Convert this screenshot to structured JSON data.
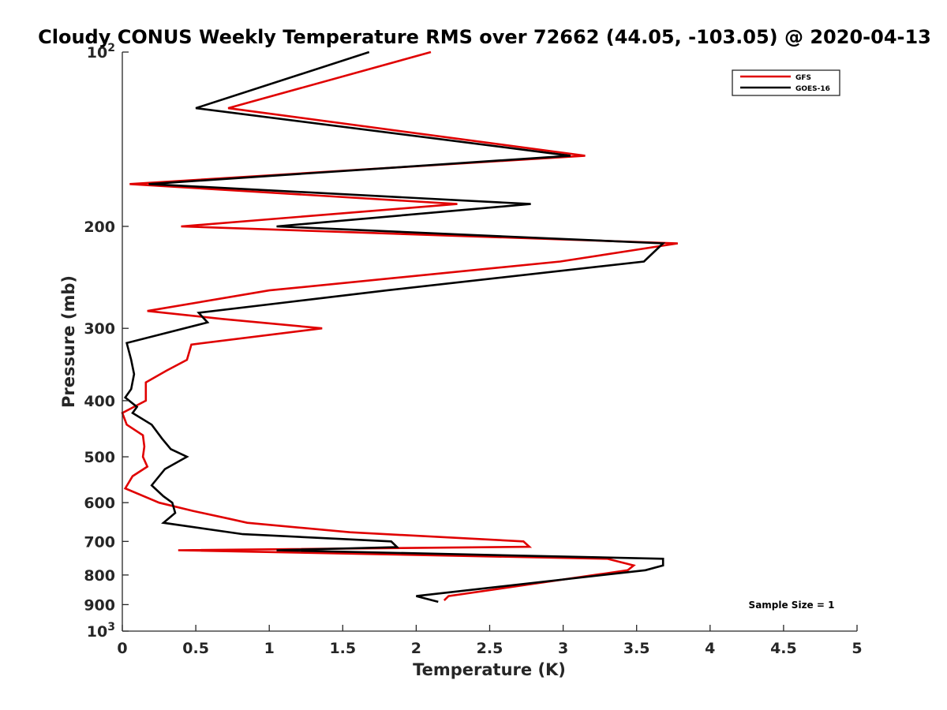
{
  "chart_data": {
    "type": "line",
    "title": "Cloudy CONUS Weekly Temperature RMS over 72662 (44.05, -103.05) @ 2020-04-13",
    "xlabel": "Temperature (K)",
    "ylabel": "Pressure (mb)",
    "xlim": [
      0,
      5
    ],
    "ylim": [
      100,
      1000
    ],
    "y_scale": "log",
    "y_reversed": true,
    "grid": false,
    "legend_position": "top-right",
    "x_ticks": [
      "0",
      "0.5",
      "1",
      "1.5",
      "2",
      "2.5",
      "3",
      "3.5",
      "4",
      "4.5",
      "5"
    ],
    "x_tick_values": [
      0,
      0.5,
      1,
      1.5,
      2,
      2.5,
      3,
      3.5,
      4,
      4.5,
      5
    ],
    "y_ticks": [
      {
        "value": 100,
        "base": "10",
        "exp": "2"
      },
      {
        "value": 200,
        "label": "200"
      },
      {
        "value": 300,
        "label": "300"
      },
      {
        "value": 400,
        "label": "400"
      },
      {
        "value": 500,
        "label": "500"
      },
      {
        "value": 600,
        "label": "600"
      },
      {
        "value": 700,
        "label": "700"
      },
      {
        "value": 800,
        "label": "800"
      },
      {
        "value": 900,
        "label": "900"
      },
      {
        "value": 1000,
        "base": "10",
        "exp": "3"
      }
    ],
    "annotation": "Sample Size = 1",
    "series": [
      {
        "name": "GFS",
        "color": "#e00000",
        "points": [
          [
            2.1,
            100
          ],
          [
            0.72,
            125
          ],
          [
            3.15,
            151
          ],
          [
            0.05,
            169
          ],
          [
            2.28,
            183
          ],
          [
            0.4,
            200
          ],
          [
            3.78,
            214
          ],
          [
            2.98,
            230
          ],
          [
            1.0,
            258
          ],
          [
            0.17,
            280
          ],
          [
            0.68,
            289
          ],
          [
            1.36,
            300
          ],
          [
            0.47,
            320
          ],
          [
            0.44,
            340
          ],
          [
            0.3,
            355
          ],
          [
            0.16,
            372
          ],
          [
            0.16,
            400
          ],
          [
            0.0,
            420
          ],
          [
            0.03,
            440
          ],
          [
            0.14,
            459
          ],
          [
            0.15,
            480
          ],
          [
            0.14,
            500
          ],
          [
            0.17,
            520
          ],
          [
            0.07,
            540
          ],
          [
            0.02,
            567
          ],
          [
            0.25,
            600
          ],
          [
            0.48,
            620
          ],
          [
            0.73,
            640
          ],
          [
            0.85,
            650
          ],
          [
            1.55,
            675
          ],
          [
            2.73,
            700
          ],
          [
            2.77,
            715
          ],
          [
            0.38,
            725
          ],
          [
            3.3,
            750
          ],
          [
            3.48,
            770
          ],
          [
            3.44,
            785
          ],
          [
            2.22,
            870
          ],
          [
            2.19,
            885
          ]
        ]
      },
      {
        "name": "GOES-16",
        "color": "#000000",
        "points": [
          [
            1.68,
            100
          ],
          [
            0.5,
            125
          ],
          [
            3.05,
            151
          ],
          [
            0.18,
            169
          ],
          [
            2.78,
            183
          ],
          [
            1.05,
            200
          ],
          [
            3.68,
            214
          ],
          [
            3.55,
            230
          ],
          [
            1.8,
            258
          ],
          [
            0.52,
            282
          ],
          [
            0.58,
            293
          ],
          [
            0.03,
            318
          ],
          [
            0.06,
            340
          ],
          [
            0.08,
            360
          ],
          [
            0.06,
            382
          ],
          [
            0.02,
            395
          ],
          [
            0.1,
            410
          ],
          [
            0.07,
            420
          ],
          [
            0.2,
            440
          ],
          [
            0.27,
            465
          ],
          [
            0.33,
            485
          ],
          [
            0.44,
            500
          ],
          [
            0.29,
            525
          ],
          [
            0.2,
            560
          ],
          [
            0.28,
            585
          ],
          [
            0.34,
            600
          ],
          [
            0.36,
            625
          ],
          [
            0.28,
            650
          ],
          [
            0.82,
            680
          ],
          [
            1.83,
            700
          ],
          [
            1.87,
            716
          ],
          [
            1.05,
            725
          ],
          [
            3.68,
            750
          ],
          [
            3.68,
            770
          ],
          [
            3.56,
            785
          ],
          [
            2.0,
            870
          ],
          [
            2.15,
            890
          ]
        ]
      }
    ]
  }
}
